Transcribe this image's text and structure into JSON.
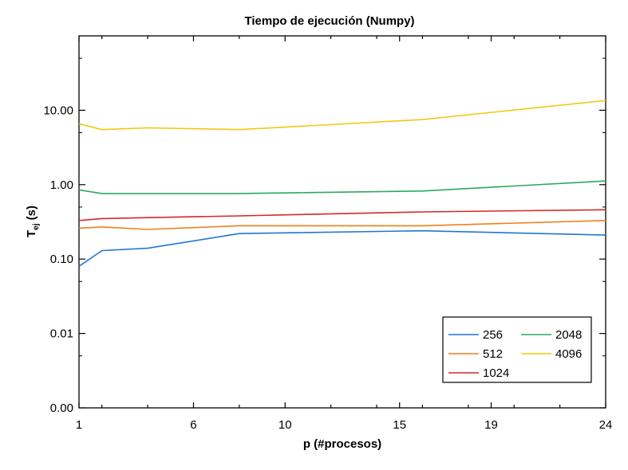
{
  "chart_data": {
    "type": "line",
    "title": "Tiempo de ejecución (Numpy)",
    "xlabel": "p (#procesos)",
    "ylabel_main": "T",
    "ylabel_sub": "ej",
    "ylabel_unit": " (s)",
    "y_scale": "log",
    "xlim": [
      1,
      24
    ],
    "ylim": [
      0.001,
      100
    ],
    "x_ticks": [
      1,
      6,
      10,
      15,
      19,
      24
    ],
    "x_tick_labels": [
      "1",
      "6",
      "10",
      "15",
      "19",
      "24"
    ],
    "y_ticks": [
      0.001,
      0.01,
      0.1,
      1,
      10
    ],
    "y_tick_labels": [
      "0.00",
      "0.01",
      "0.10",
      "1.00",
      "10.00"
    ],
    "grid": false,
    "legend_position": "bottom-right",
    "x": [
      1,
      2,
      4,
      8,
      16,
      24
    ],
    "series": [
      {
        "name": "256",
        "color": "#1f77d4",
        "values": [
          0.08,
          0.13,
          0.14,
          0.22,
          0.24,
          0.21
        ]
      },
      {
        "name": "512",
        "color": "#f07f1a",
        "values": [
          0.26,
          0.27,
          0.25,
          0.28,
          0.28,
          0.33
        ]
      },
      {
        "name": "1024",
        "color": "#d62728",
        "values": [
          0.33,
          0.35,
          0.36,
          0.38,
          0.43,
          0.46
        ]
      },
      {
        "name": "2048",
        "color": "#2ca860",
        "values": [
          0.85,
          0.76,
          0.76,
          0.76,
          0.82,
          1.12
        ]
      },
      {
        "name": "4096",
        "color": "#f2c80f",
        "values": [
          6.6,
          5.5,
          5.8,
          5.5,
          7.5,
          13.5
        ]
      }
    ]
  }
}
